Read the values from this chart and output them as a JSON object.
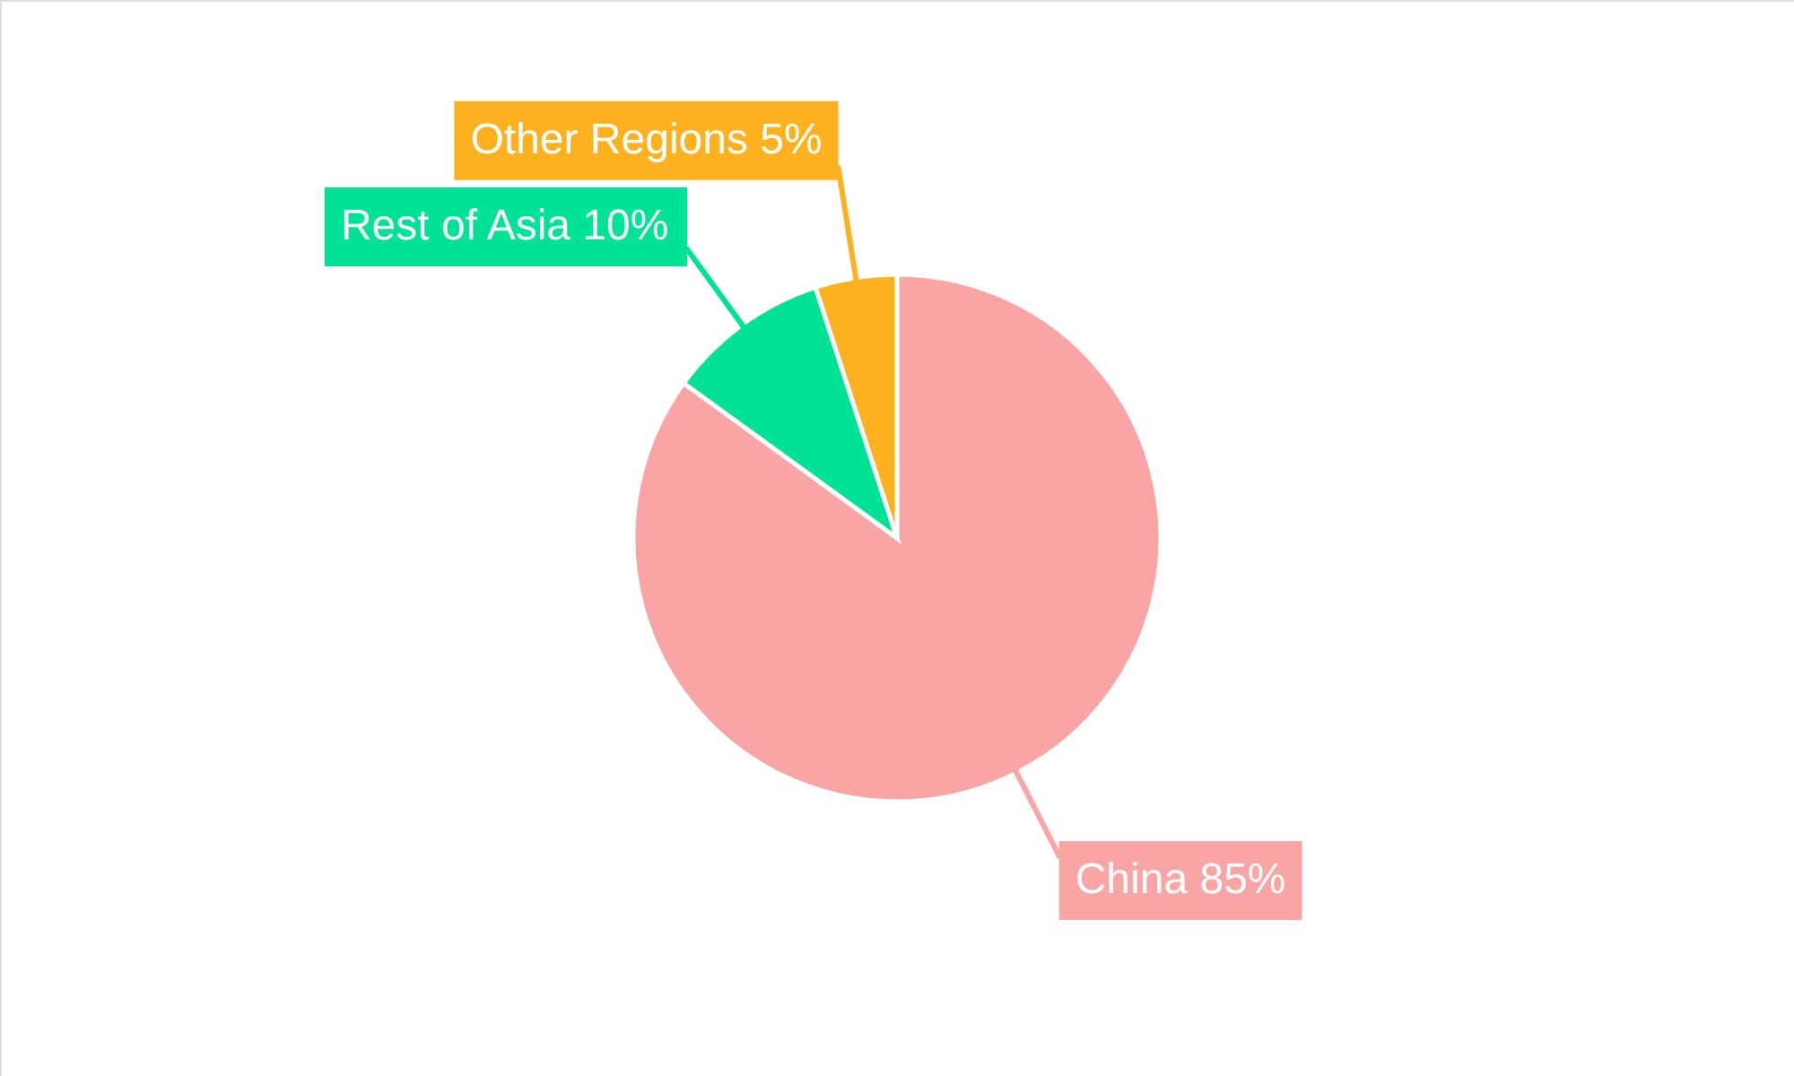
{
  "chart_data": {
    "type": "pie",
    "categories": [
      "China",
      "Rest of Asia",
      "Other Regions"
    ],
    "values": [
      85,
      10,
      5
    ],
    "colors": [
      "#f9a4a5",
      "#00e296",
      "#feb11e"
    ],
    "value_labels": [
      "85%",
      "10%",
      "5%"
    ]
  }
}
